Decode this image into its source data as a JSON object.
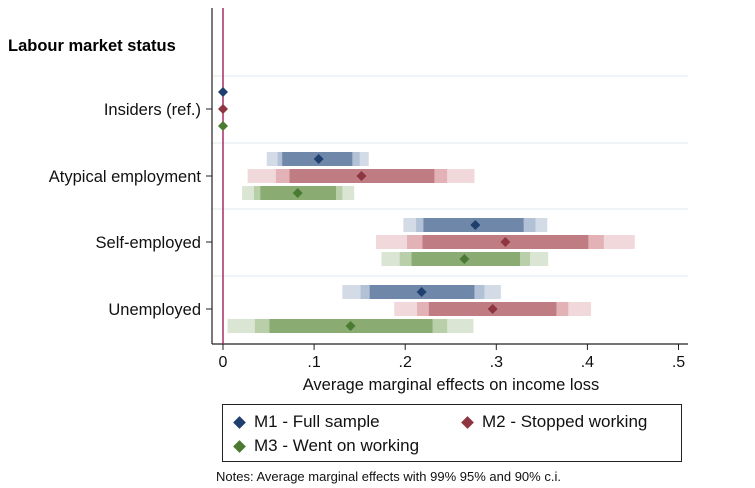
{
  "chart_data": {
    "type": "scatter",
    "orientation": "horizontal",
    "group_heading": "Labour market status",
    "xlabel": "Average marginal effects on income loss",
    "xlim": [
      -0.01,
      0.51
    ],
    "xticks": [
      0,
      0.1,
      0.2,
      0.3,
      0.4,
      0.5
    ],
    "xtick_labels": [
      "0",
      ".1",
      ".2",
      ".3",
      ".4",
      ".5"
    ],
    "reference_line_x": 0,
    "grid": true,
    "legend_position": "bottom",
    "notes": "Notes: Average marginal effects with 99% 95% and 90% c.i.",
    "categories": [
      "Insiders (ref.)",
      "Atypical employment",
      "Self-employed",
      "Unemployed"
    ],
    "series": [
      {
        "name": "M1 - Full sample",
        "color": "#1f3f6e",
        "ci_colors": [
          "#d3dbe7",
          "#b2c1d6",
          "#6f88aa"
        ],
        "points": [
          {
            "estimate": 0,
            "ci99": null,
            "ci95": null,
            "ci90": null
          },
          {
            "estimate": 0.105,
            "ci99": [
              0.048,
              0.16
            ],
            "ci95": [
              0.06,
              0.15
            ],
            "ci90": [
              0.065,
              0.142
            ]
          },
          {
            "estimate": 0.277,
            "ci99": [
              0.198,
              0.356
            ],
            "ci95": [
              0.212,
              0.343
            ],
            "ci90": [
              0.22,
              0.33
            ]
          },
          {
            "estimate": 0.218,
            "ci99": [
              0.131,
              0.305
            ],
            "ci95": [
              0.151,
              0.287
            ],
            "ci90": [
              0.161,
              0.276
            ]
          }
        ]
      },
      {
        "name": "M2 - Stopped working",
        "color": "#8e3541",
        "ci_colors": [
          "#f1d9db",
          "#e2b2b6",
          "#bf7c83"
        ],
        "points": [
          {
            "estimate": 0,
            "ci99": null,
            "ci95": null,
            "ci90": null
          },
          {
            "estimate": 0.152,
            "ci99": [
              0.027,
              0.276
            ],
            "ci95": [
              0.058,
              0.246
            ],
            "ci90": [
              0.073,
              0.232
            ]
          },
          {
            "estimate": 0.31,
            "ci99": [
              0.168,
              0.452
            ],
            "ci95": [
              0.202,
              0.418
            ],
            "ci90": [
              0.219,
              0.401
            ]
          },
          {
            "estimate": 0.296,
            "ci99": [
              0.188,
              0.404
            ],
            "ci95": [
              0.213,
              0.379
            ],
            "ci90": [
              0.226,
              0.366
            ]
          }
        ]
      },
      {
        "name": "M3 - Went on working",
        "color": "#4b7a33",
        "ci_colors": [
          "#dae5d3",
          "#b8cfa9",
          "#8aab72"
        ],
        "points": [
          {
            "estimate": 0,
            "ci99": null,
            "ci95": null,
            "ci90": null
          },
          {
            "estimate": 0.082,
            "ci99": [
              0.021,
              0.144
            ],
            "ci95": [
              0.034,
              0.131
            ],
            "ci90": [
              0.041,
              0.124
            ]
          },
          {
            "estimate": 0.265,
            "ci99": [
              0.174,
              0.357
            ],
            "ci95": [
              0.194,
              0.337
            ],
            "ci90": [
              0.207,
              0.326
            ]
          },
          {
            "estimate": 0.14,
            "ci99": [
              0.005,
              0.275
            ],
            "ci95": [
              0.035,
              0.246
            ],
            "ci90": [
              0.051,
              0.23
            ]
          }
        ]
      }
    ]
  }
}
